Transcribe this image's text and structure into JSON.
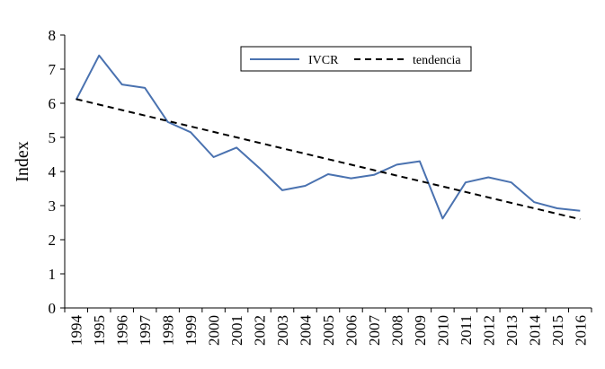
{
  "chart_data": {
    "type": "line",
    "title": "",
    "xlabel": "",
    "ylabel": "Index",
    "ylim": [
      0,
      8
    ],
    "yticks": [
      "0",
      "1",
      "2",
      "3",
      "4",
      "5",
      "6",
      "7",
      "8"
    ],
    "grid": false,
    "legend_position": "top-right",
    "categories": [
      "1994",
      "1995",
      "1996",
      "1997",
      "1998",
      "1999",
      "2000",
      "2001",
      "2002",
      "2003",
      "2004",
      "2005",
      "2006",
      "2007",
      "2008",
      "2009",
      "2010",
      "2011",
      "2012",
      "2013",
      "2014",
      "2015",
      "2016"
    ],
    "series": [
      {
        "name": "IVCR",
        "style": "solid",
        "color": "#4a72b0",
        "values": [
          6.1,
          7.4,
          6.55,
          6.45,
          5.45,
          5.15,
          4.42,
          4.7,
          4.1,
          3.45,
          3.58,
          3.92,
          3.8,
          3.9,
          4.2,
          4.3,
          2.62,
          3.68,
          3.83,
          3.68,
          3.1,
          2.92,
          2.85
        ]
      },
      {
        "name": "tendencia",
        "style": "dashed",
        "color": "#000000",
        "values": [
          6.12,
          5.96,
          5.8,
          5.64,
          5.48,
          5.32,
          5.16,
          5.0,
          4.84,
          4.68,
          4.52,
          4.36,
          4.2,
          4.04,
          3.88,
          3.72,
          3.56,
          3.4,
          3.24,
          3.08,
          2.92,
          2.76,
          2.6
        ]
      }
    ]
  }
}
